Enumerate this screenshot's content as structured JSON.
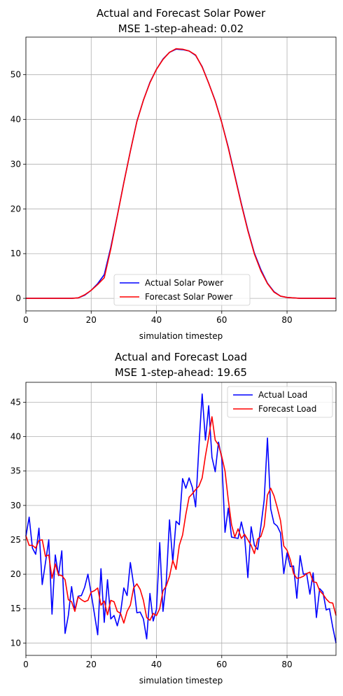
{
  "chart_data": [
    {
      "type": "line",
      "title": "Actual and Forecast Solar Power",
      "subtitle": "MSE 1-step-ahead: 0.02",
      "xlabel": "simulation timestep",
      "ylabel": "",
      "xlim": [
        0,
        95
      ],
      "ylim": [
        -2.8,
        58.4
      ],
      "xticks": [
        0,
        20,
        40,
        60,
        80
      ],
      "yticks": [
        0,
        10,
        20,
        30,
        40,
        50
      ],
      "grid": true,
      "legend_position": "lower-center",
      "series": [
        {
          "name": "Actual Solar Power",
          "color": "#0000ff",
          "x": [
            0,
            2,
            4,
            6,
            8,
            10,
            12,
            14,
            16,
            18,
            20,
            22,
            24,
            26,
            28,
            30,
            32,
            34,
            36,
            38,
            40,
            42,
            44,
            46,
            48,
            50,
            52,
            54,
            56,
            58,
            60,
            62,
            64,
            66,
            68,
            70,
            72,
            74,
            76,
            78,
            80,
            82,
            84,
            86,
            88,
            90,
            92,
            94,
            95
          ],
          "y": [
            0,
            0,
            0,
            0,
            0,
            0,
            0,
            0,
            0.1,
            0.7,
            1.8,
            3.3,
            5.3,
            11.4,
            18.5,
            25.9,
            32.9,
            39.6,
            44.3,
            48.3,
            51.2,
            53.5,
            55.0,
            55.7,
            55.6,
            55.3,
            54.3,
            51.8,
            48.1,
            44.2,
            39.3,
            33.8,
            27.5,
            21.2,
            15.3,
            10.1,
            6.4,
            3.4,
            1.5,
            0.5,
            0.2,
            0.1,
            0,
            0,
            0,
            0,
            0,
            0,
            0
          ]
        },
        {
          "name": "Forecast Solar Power",
          "color": "#ff0000",
          "x": [
            0,
            2,
            4,
            6,
            8,
            10,
            12,
            14,
            16,
            18,
            20,
            22,
            24,
            26,
            28,
            30,
            32,
            34,
            36,
            38,
            40,
            42,
            44,
            46,
            48,
            50,
            52,
            54,
            56,
            58,
            60,
            62,
            64,
            66,
            68,
            70,
            72,
            74,
            76,
            78,
            80,
            82,
            84,
            86,
            88,
            90,
            92,
            94,
            95
          ],
          "y": [
            0,
            0,
            0,
            0,
            0,
            0,
            0,
            0,
            0.1,
            0.8,
            1.8,
            3.1,
            4.6,
            11.0,
            18.4,
            25.8,
            32.9,
            39.5,
            44.3,
            48.2,
            51.2,
            53.4,
            55.0,
            55.8,
            55.7,
            55.3,
            54.4,
            51.7,
            48.1,
            44.1,
            39.3,
            33.6,
            27.3,
            21.0,
            15.1,
            9.9,
            6.1,
            3.3,
            1.4,
            0.5,
            0.2,
            0.1,
            0,
            0,
            0,
            0,
            0,
            0,
            0
          ]
        }
      ]
    },
    {
      "type": "line",
      "title": "Actual and Forecast Load",
      "subtitle": "MSE 1-step-ahead: 19.65",
      "xlabel": "simulation timestep",
      "ylabel": "",
      "xlim": [
        0,
        95
      ],
      "ylim": [
        8.2,
        47.9
      ],
      "xticks": [
        0,
        20,
        40,
        60,
        80
      ],
      "yticks": [
        10,
        15,
        20,
        25,
        30,
        35,
        40,
        45
      ],
      "grid": true,
      "legend_position": "upper-right",
      "series": [
        {
          "name": "Actual Load",
          "color": "#0000ff",
          "x": [
            0,
            1,
            2,
            3,
            4,
            5,
            6,
            7,
            8,
            9,
            10,
            11,
            12,
            13,
            14,
            15,
            16,
            17,
            18,
            19,
            20,
            21,
            22,
            23,
            24,
            25,
            26,
            27,
            28,
            29,
            30,
            31,
            32,
            33,
            34,
            35,
            36,
            37,
            38,
            39,
            40,
            41,
            42,
            43,
            44,
            45,
            46,
            47,
            48,
            49,
            50,
            51,
            52,
            53,
            54,
            55,
            56,
            57,
            58,
            59,
            60,
            61,
            62,
            63,
            64,
            65,
            66,
            67,
            68,
            69,
            70,
            71,
            72,
            73,
            74,
            75,
            76,
            77,
            78,
            79,
            80,
            81,
            82,
            83,
            84,
            85,
            86,
            87,
            88,
            89,
            90,
            91,
            92,
            93,
            94,
            95
          ],
          "y": [
            25.5,
            28.3,
            23.8,
            22.9,
            26.7,
            18.5,
            21.7,
            25.0,
            14.2,
            22.8,
            19.8,
            23.4,
            11.4,
            14.0,
            18.2,
            14.8,
            16.8,
            16.9,
            18.1,
            20.0,
            17.2,
            14.2,
            11.2,
            20.8,
            13.0,
            19.2,
            13.5,
            14.0,
            12.5,
            14.4,
            18.0,
            16.9,
            21.7,
            18.5,
            14.4,
            14.5,
            13.5,
            10.6,
            17.2,
            13.2,
            14.9,
            24.6,
            14.6,
            18.9,
            27.9,
            21.8,
            27.7,
            27.2,
            33.9,
            32.5,
            34.0,
            32.6,
            29.8,
            38.5,
            46.2,
            39.5,
            44.5,
            37.0,
            34.9,
            39.2,
            36.9,
            26.1,
            29.6,
            25.4,
            25.3,
            25.2,
            27.6,
            25.5,
            19.5,
            26.9,
            24.2,
            23.6,
            27.0,
            30.8,
            39.8,
            29.5,
            27.4,
            27.0,
            26.0,
            20.1,
            23.1,
            21.1,
            21.2,
            16.5,
            22.7,
            20.0,
            20.1,
            17.1,
            20.2,
            13.7,
            17.9,
            17.4,
            14.8,
            15.0,
            12.3,
            10.0
          ]
        },
        {
          "name": "Forecast Load",
          "color": "#ff0000",
          "x": [
            0,
            1,
            2,
            3,
            4,
            5,
            6,
            7,
            8,
            9,
            10,
            11,
            12,
            13,
            14,
            15,
            16,
            17,
            18,
            19,
            20,
            21,
            22,
            23,
            24,
            25,
            26,
            27,
            28,
            29,
            30,
            31,
            32,
            33,
            34,
            35,
            36,
            37,
            38,
            39,
            40,
            41,
            42,
            43,
            44,
            45,
            46,
            47,
            48,
            49,
            50,
            51,
            52,
            53,
            54,
            55,
            56,
            57,
            58,
            59,
            60,
            61,
            62,
            63,
            64,
            65,
            66,
            67,
            68,
            69,
            70,
            71,
            72,
            73,
            74,
            75,
            76,
            77,
            78,
            79,
            80,
            81,
            82,
            83,
            84,
            85,
            86,
            87,
            88,
            89,
            90,
            91,
            92,
            93,
            94,
            95
          ],
          "y": [
            25.6,
            24.2,
            24.2,
            23.8,
            24.9,
            25.0,
            22.6,
            22.8,
            19.4,
            21.5,
            19.9,
            19.8,
            19.2,
            16.3,
            16.0,
            14.6,
            16.7,
            16.3,
            16.0,
            16.2,
            17.4,
            17.6,
            18.0,
            15.5,
            16.1,
            14.1,
            16.2,
            16.0,
            14.6,
            14.3,
            12.9,
            14.6,
            15.5,
            18.0,
            18.6,
            17.8,
            16.2,
            13.7,
            13.3,
            14.3,
            14.0,
            15.0,
            17.6,
            18.3,
            19.7,
            22.0,
            20.7,
            24.2,
            25.7,
            28.7,
            31.2,
            31.7,
            32.3,
            32.8,
            34.0,
            37.2,
            39.9,
            42.9,
            39.5,
            38.8,
            37.1,
            35.0,
            30.8,
            27.2,
            25.4,
            26.6,
            25.2,
            25.8,
            25.0,
            24.2,
            23.0,
            25.1,
            25.5,
            27.0,
            31.5,
            32.5,
            31.4,
            29.7,
            27.8,
            24.1,
            23.5,
            22.1,
            20.1,
            19.4,
            19.5,
            19.7,
            20.1,
            20.3,
            18.9,
            18.8,
            17.6,
            17.1,
            16.4,
            15.9,
            15.8,
            14.0
          ]
        }
      ]
    }
  ]
}
